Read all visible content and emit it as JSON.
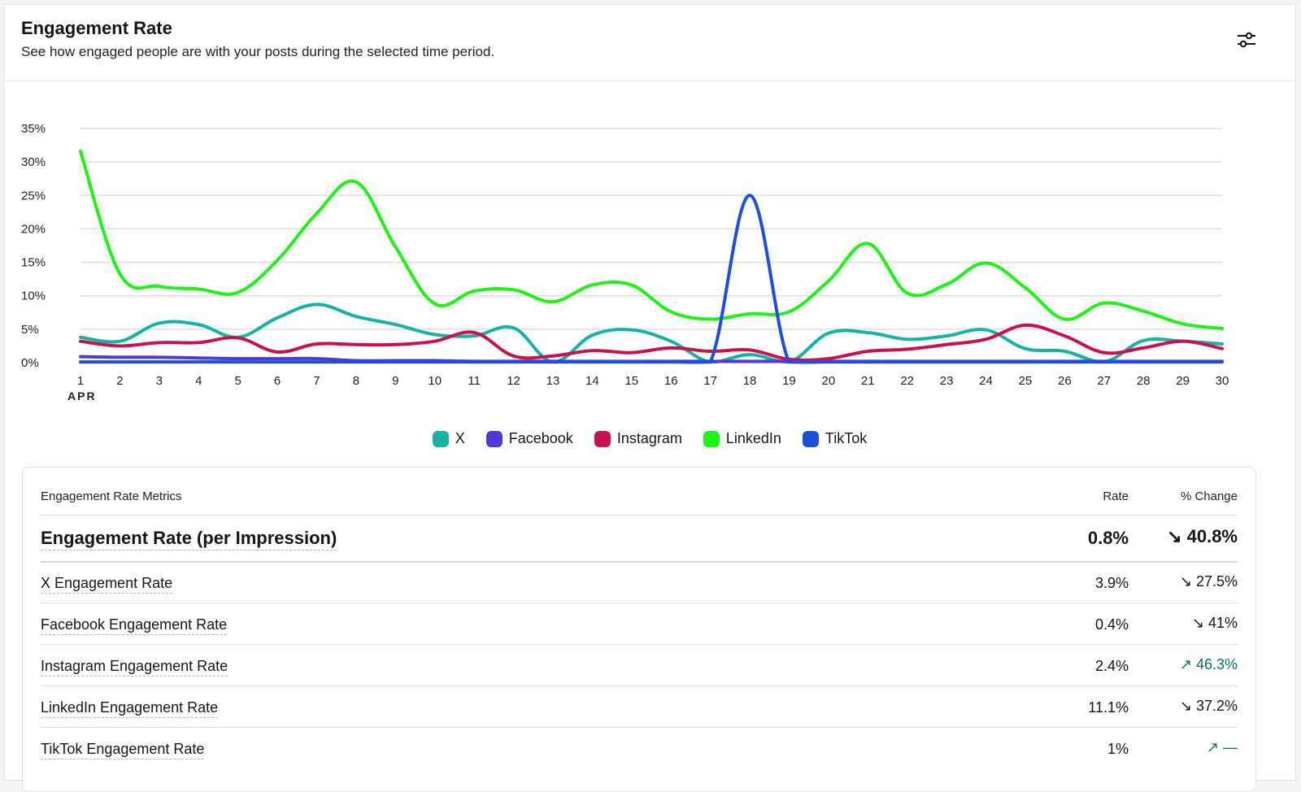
{
  "header": {
    "title": "Engagement Rate",
    "subtitle": "See how engaged people are with your posts during the selected time period."
  },
  "settings_icon": "sliders-icon",
  "chart_data": {
    "type": "line",
    "x": [
      1,
      2,
      3,
      4,
      5,
      6,
      7,
      8,
      9,
      10,
      11,
      12,
      13,
      14,
      15,
      16,
      17,
      18,
      19,
      20,
      21,
      22,
      23,
      24,
      25,
      26,
      27,
      28,
      29,
      30
    ],
    "x_tick_labels": [
      "1",
      "2",
      "3",
      "4",
      "5",
      "6",
      "7",
      "8",
      "9",
      "10",
      "11",
      "12",
      "13",
      "14",
      "15",
      "16",
      "17",
      "18",
      "19",
      "20",
      "21",
      "22",
      "23",
      "24",
      "25",
      "26",
      "27",
      "28",
      "29",
      "30"
    ],
    "x_month_label": "APR",
    "y_tick_labels": [
      "0%",
      "5%",
      "10%",
      "15%",
      "20%",
      "25%",
      "30%",
      "35%"
    ],
    "ylim": [
      0,
      35
    ],
    "grid": true,
    "legend_position": "bottom",
    "title": "",
    "xlabel": "",
    "ylabel": "",
    "series": [
      {
        "name": "X",
        "color": "#16b2a3",
        "values": [
          3.8,
          3.2,
          5.9,
          5.7,
          3.8,
          6.7,
          8.7,
          6.9,
          5.7,
          4.2,
          4.0,
          5.2,
          0.1,
          4.1,
          4.9,
          3.2,
          0.1,
          1.2,
          0.1,
          4.4,
          4.5,
          3.5,
          4.0,
          4.9,
          2.1,
          1.7,
          0.1,
          3.3,
          3.2,
          2.8
        ]
      },
      {
        "name": "Facebook",
        "color": "#5039d4",
        "values": [
          0.9,
          0.8,
          0.8,
          0.7,
          0.6,
          0.6,
          0.6,
          0.3,
          0.3,
          0.3,
          0.2,
          0.2,
          0.2,
          0.2,
          0.2,
          0.2,
          0.2,
          0.2,
          0.2,
          0.2,
          0.2,
          0.2,
          0.2,
          0.2,
          0.2,
          0.2,
          0.2,
          0.2,
          0.2,
          0.2
        ]
      },
      {
        "name": "Instagram",
        "color": "#c81250",
        "values": [
          3.2,
          2.5,
          3.0,
          3.0,
          3.7,
          1.6,
          2.8,
          2.7,
          2.7,
          3.2,
          4.5,
          1.0,
          1.0,
          1.8,
          1.5,
          2.2,
          1.7,
          1.9,
          0.5,
          0.6,
          1.7,
          2.0,
          2.7,
          3.5,
          5.6,
          4.0,
          1.5,
          2.2,
          3.2,
          2.1
        ]
      },
      {
        "name": "LinkedIn",
        "color": "#1ef217",
        "values": [
          31.6,
          13.3,
          11.4,
          11.0,
          10.5,
          15.3,
          22.3,
          27.0,
          17.3,
          8.8,
          10.7,
          10.9,
          9.1,
          11.6,
          11.6,
          7.6,
          6.5,
          7.3,
          7.6,
          12.2,
          17.8,
          10.4,
          11.7,
          14.9,
          11.2,
          6.5,
          8.9,
          7.7,
          5.8,
          5.1
        ]
      },
      {
        "name": "TikTok",
        "color": "#1d4fde",
        "values": [
          0.1,
          0.1,
          0.1,
          0.1,
          0.1,
          0.1,
          0.1,
          0.1,
          0.1,
          0.1,
          0.1,
          0.1,
          0.1,
          0.1,
          0.1,
          0.1,
          0.1,
          25.0,
          0.1,
          0.1,
          0.1,
          0.1,
          0.1,
          0.1,
          0.1,
          0.1,
          0.1,
          0.1,
          0.1,
          0.1
        ]
      }
    ]
  },
  "metrics": {
    "header": {
      "col1": "Engagement Rate Metrics",
      "col2": "Rate",
      "col3": "% Change"
    },
    "main": {
      "name": "Engagement Rate (per Impression)",
      "rate": "0.8%",
      "change": "↘ 40.8%",
      "direction": "down"
    },
    "rows": [
      {
        "name": "X Engagement Rate",
        "rate": "3.9%",
        "change": "↘ 27.5%",
        "direction": "down"
      },
      {
        "name": "Facebook Engagement Rate",
        "rate": "0.4%",
        "change": "↘ 41%",
        "direction": "down"
      },
      {
        "name": "Instagram Engagement Rate",
        "rate": "2.4%",
        "change": "↗ 46.3%",
        "direction": "up"
      },
      {
        "name": "LinkedIn Engagement Rate",
        "rate": "11.1%",
        "change": "↘ 37.2%",
        "direction": "down"
      },
      {
        "name": "TikTok Engagement Rate",
        "rate": "1%",
        "change": "↗ —",
        "direction": "up"
      }
    ]
  }
}
